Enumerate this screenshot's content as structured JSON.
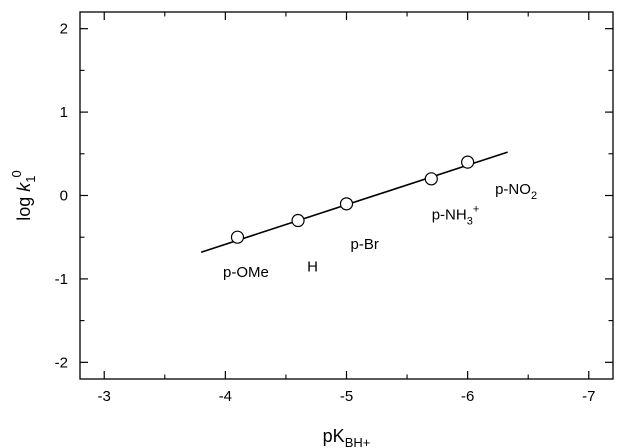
{
  "chart_data": {
    "type": "scatter",
    "title": "",
    "xlabel": {
      "main": "pK",
      "sub": "BH+"
    },
    "ylabel": {
      "main": "log ",
      "italic": "k",
      "sub": "1",
      "sup": "0"
    },
    "xlim": [
      -2.8,
      -7.2
    ],
    "ylim": [
      -2.2,
      2.2
    ],
    "x_reversed": true,
    "grid": false,
    "legend": "none",
    "x_ticks": [
      {
        "value": -3,
        "label": "-3"
      },
      {
        "value": -4,
        "label": "-4"
      },
      {
        "value": -5,
        "label": "-5"
      },
      {
        "value": -6,
        "label": "-6"
      },
      {
        "value": -7,
        "label": "-7"
      }
    ],
    "y_ticks": [
      {
        "value": -2,
        "label": "-2"
      },
      {
        "value": -1,
        "label": "-1"
      },
      {
        "value": 0,
        "label": "0"
      },
      {
        "value": 1,
        "label": "1"
      },
      {
        "value": 2,
        "label": "2"
      }
    ],
    "points": [
      {
        "x": -4.1,
        "y": -0.5
      },
      {
        "x": -4.6,
        "y": -0.3
      },
      {
        "x": -5.0,
        "y": -0.1
      },
      {
        "x": -5.7,
        "y": 0.2
      },
      {
        "x": -6.0,
        "y": 0.4
      }
    ],
    "fit_line": {
      "x": [
        -3.8,
        -6.33
      ],
      "y": [
        -0.68,
        0.52
      ]
    },
    "annotations": [
      {
        "main": "p-OMe",
        "sub": "",
        "sup": "",
        "sub2": "",
        "x": -4.17,
        "y": -0.92
      },
      {
        "main": "H",
        "sub": "",
        "sup": "",
        "sub2": "",
        "x": -4.72,
        "y": -0.85
      },
      {
        "main": "p-Br",
        "sub": "",
        "sup": "",
        "sub2": "",
        "x": -5.15,
        "y": -0.58
      },
      {
        "main": "p-NH",
        "sub": "3",
        "sup": "+",
        "sub2": "",
        "x": -5.9,
        "y": -0.23
      },
      {
        "main": "p-NO",
        "sub": "2",
        "sup": "",
        "sub2": "",
        "x": -6.4,
        "y": 0.08
      }
    ],
    "colors": {
      "marker_fill": "#ffffff",
      "stroke": "#000000"
    }
  }
}
